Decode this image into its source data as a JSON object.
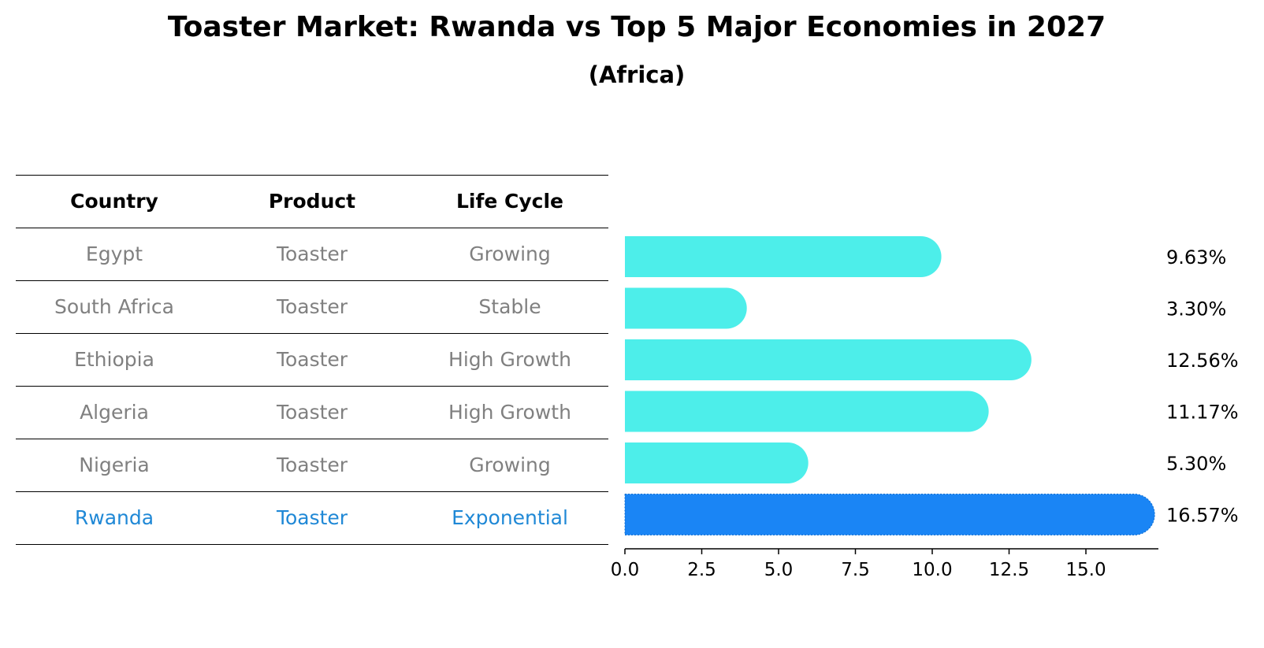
{
  "title": "Toaster Market: Rwanda vs Top 5 Major Economies in 2027",
  "subtitle": "(Africa)",
  "table": {
    "headers": [
      "Country",
      "Product",
      "Life Cycle"
    ],
    "rows": [
      [
        "Egypt",
        "Toaster",
        "Growing"
      ],
      [
        "South Africa",
        "Toaster",
        "Stable"
      ],
      [
        "Ethiopia",
        "Toaster",
        "High Growth"
      ],
      [
        "Algeria",
        "Toaster",
        "High Growth"
      ],
      [
        "Nigeria",
        "Toaster",
        "Growing"
      ],
      [
        "Rwanda",
        "Toaster",
        "Exponential"
      ]
    ]
  },
  "chart_data": {
    "type": "bar",
    "orientation": "horizontal",
    "categories": [
      "Egypt",
      "South Africa",
      "Ethiopia",
      "Algeria",
      "Nigeria",
      "Rwanda"
    ],
    "values": [
      9.63,
      3.3,
      12.56,
      11.17,
      5.3,
      16.57
    ],
    "value_labels": [
      "9.63%",
      "3.30%",
      "12.56%",
      "11.17%",
      "5.30%",
      "16.57%"
    ],
    "highlight": "Rwanda",
    "xlim": [
      0,
      17.4
    ],
    "xticks": [
      0,
      2.5,
      5,
      7.5,
      10,
      12.5,
      15
    ],
    "xtick_labels": [
      "0.0",
      "2.5",
      "5.0",
      "7.5",
      "10.0",
      "12.5",
      "15.0"
    ],
    "xlabel": "",
    "ylabel": "",
    "colors": {
      "default": "#4deeea",
      "highlight": "#1a85f5"
    }
  }
}
